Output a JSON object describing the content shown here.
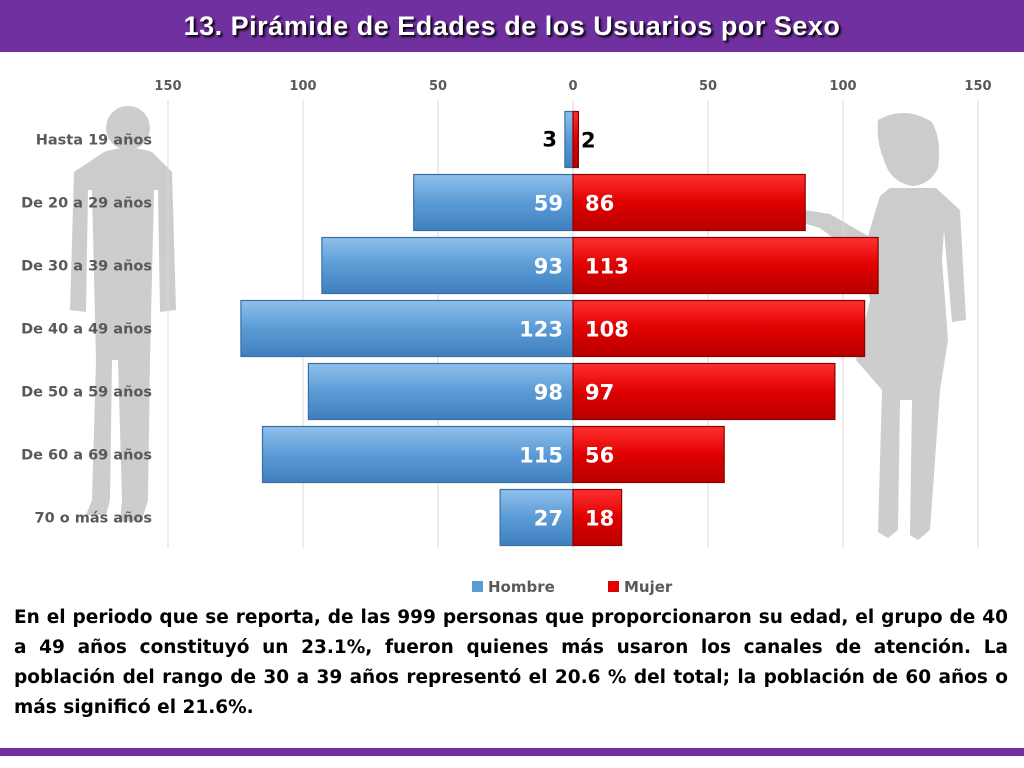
{
  "slide": {
    "title": "13. Pirámide de Edades de los Usuarios por Sexo",
    "paragraph": "En el periodo que se reporta, de las 999 personas que proporcionaron su edad, el grupo de 40 a 49 años constituyó un 23.1%, fueron quienes más usaron los canales de atención. La población del rango de 30 a 39 años representó el 20.6 % del total; la población de 60 años o más significó el 21.6%."
  },
  "colors": {
    "accent": "#7030a0",
    "hombre": "#5b9bd5",
    "mujer": "#e00000"
  },
  "chart_data": {
    "type": "bar",
    "orientation": "horizontal-diverging",
    "categories": [
      "Hasta 19 años",
      "De 20 a 29 años",
      "De 30 a 39 años",
      "De 40 a 49 años",
      "De 50 a 59 años",
      "De 60 a 69 años",
      "70 o más años"
    ],
    "series": [
      {
        "name": "Hombre",
        "values": [
          3,
          59,
          93,
          123,
          98,
          115,
          27
        ]
      },
      {
        "name": "Mujer",
        "values": [
          2,
          86,
          113,
          108,
          97,
          56,
          18
        ]
      }
    ],
    "xlim": [
      -150,
      150
    ],
    "x_ticks": [
      -150,
      -100,
      -50,
      0,
      50,
      100,
      150
    ],
    "x_tick_labels": [
      "150",
      "100",
      "50",
      "0",
      "50",
      "100",
      "150"
    ],
    "grid": "vertical",
    "legend": "bottom",
    "data_labels": true
  }
}
